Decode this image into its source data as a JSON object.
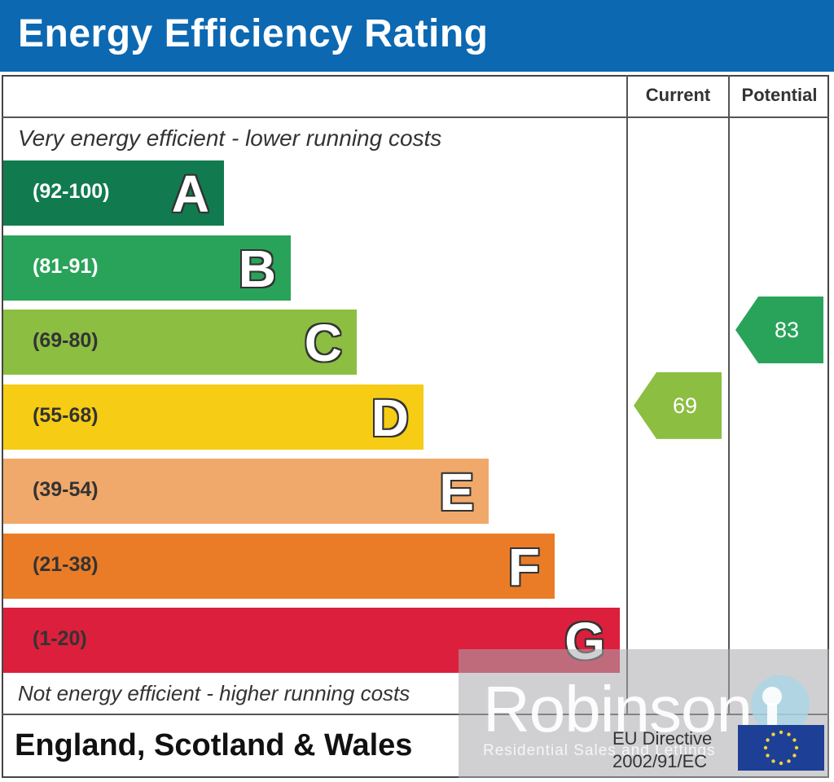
{
  "header": {
    "title": "Energy Efficiency Rating"
  },
  "columns": {
    "current": "Current",
    "potential": "Potential"
  },
  "captions": {
    "top": "Very energy efficient - lower running costs",
    "bottom": "Not energy efficient - higher running costs"
  },
  "chart_data": {
    "type": "bar",
    "title": "Energy Efficiency Rating",
    "orientation": "horizontal",
    "bands": [
      {
        "letter": "A",
        "range": "(92-100)",
        "color": "#117b4f",
        "text_color": "#ffffff"
      },
      {
        "letter": "B",
        "range": "(81-91)",
        "color": "#2aa35a",
        "text_color": "#ffffff"
      },
      {
        "letter": "C",
        "range": "(69-80)",
        "color": "#8cbe42",
        "text_color": "#333333"
      },
      {
        "letter": "D",
        "range": "(55-68)",
        "color": "#f6cc15",
        "text_color": "#333333"
      },
      {
        "letter": "E",
        "range": "(39-54)",
        "color": "#f0a96a",
        "text_color": "#333333"
      },
      {
        "letter": "F",
        "range": "(21-38)",
        "color": "#ea7c27",
        "text_color": "#333333"
      },
      {
        "letter": "G",
        "range": "(1-20)",
        "color": "#dc1f3c",
        "text_color": "#333333"
      }
    ],
    "current": {
      "value": 69,
      "band": "C",
      "color": "#8cbe42"
    },
    "potential": {
      "value": 83,
      "band": "B",
      "color": "#2aa35a"
    }
  },
  "footer": {
    "region": "England, Scotland & Wales",
    "directive_line1": "EU Directive",
    "directive_line2": "2002/91/EC"
  },
  "watermark": {
    "name": "Robinson",
    "tagline": "Residential Sales and Lettings"
  }
}
